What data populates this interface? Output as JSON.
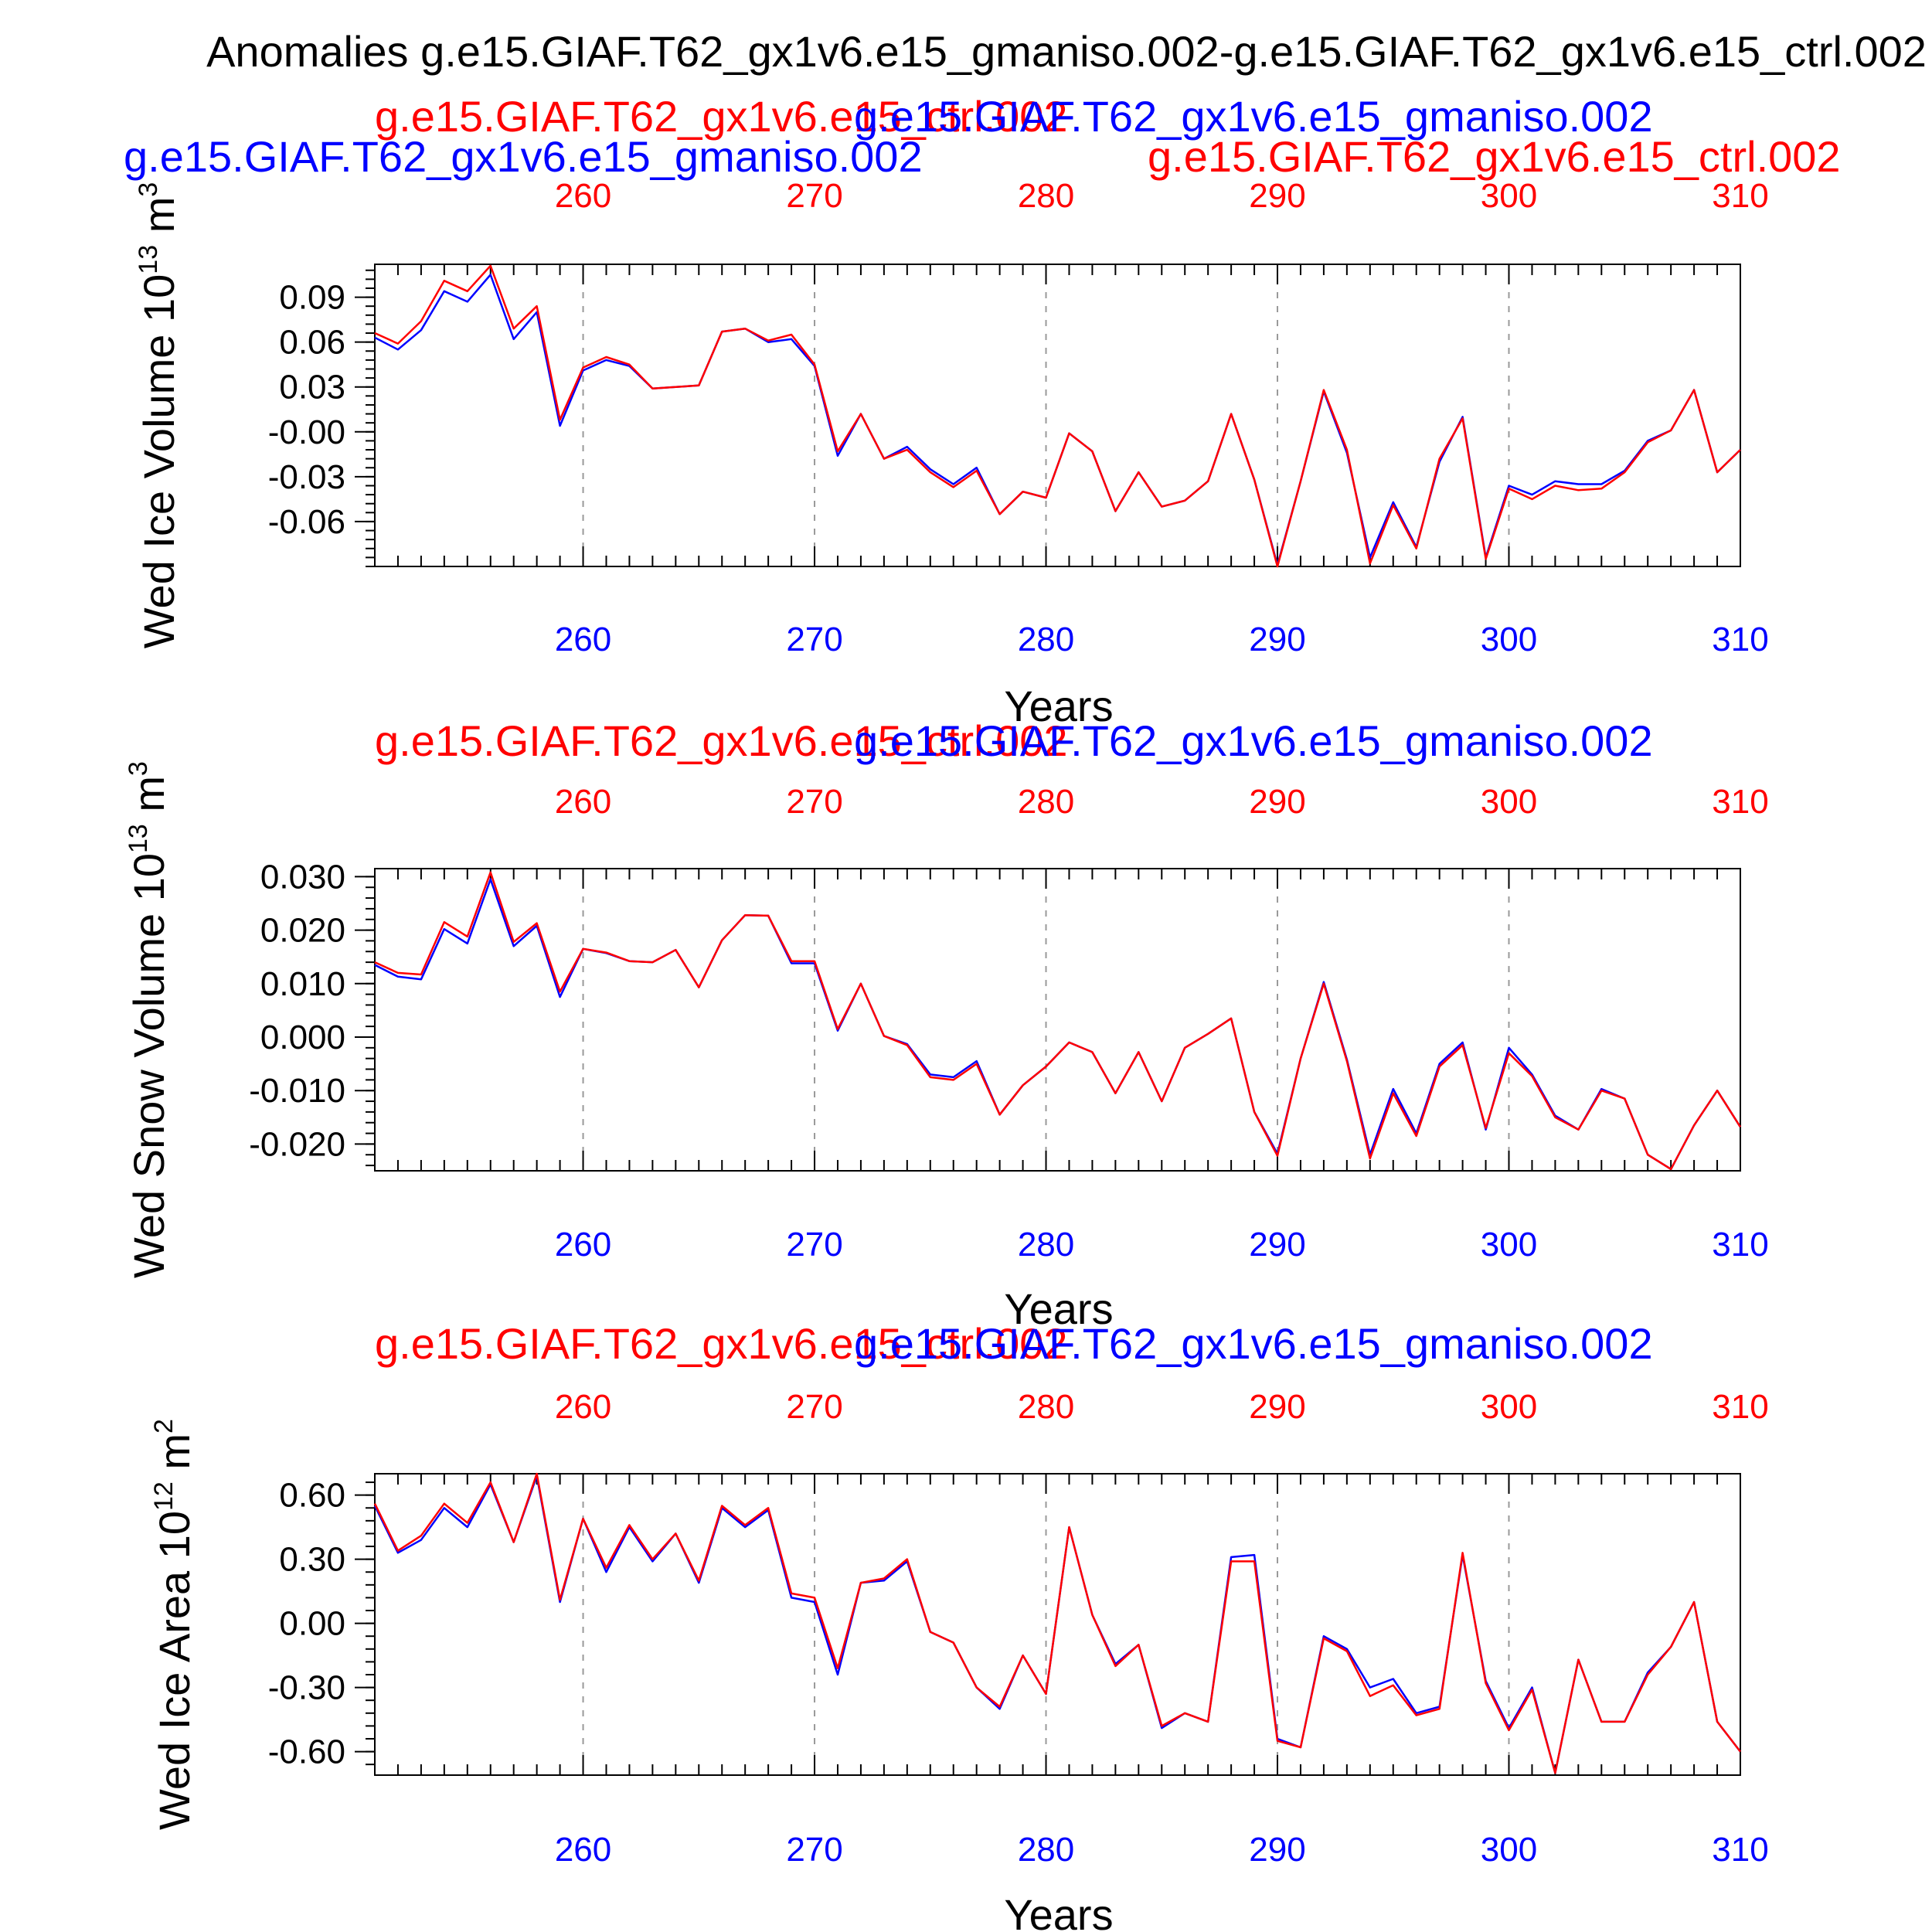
{
  "figure": {
    "title": "Anomalies g.e15.GIAF.T62_gx1v6.e15_gmaniso.002-g.e15.GIAF.T62_gx1v6.e15_ctrl.002",
    "extra_labels": {
      "blue": "g.e15.GIAF.T62_gx1v6.e15_gmaniso.002",
      "red": "g.e15.GIAF.T62_gx1v6.e15_ctrl.002"
    }
  },
  "colors": {
    "ctrl": "#ff0000",
    "gmaniso": "#0000ff",
    "axis": "#000000",
    "grid": "#999999"
  },
  "chart_data": [
    {
      "type": "line",
      "ylabel_main": "Wed Ice Volume 10",
      "ylabel_exp": "13",
      "ylabel_unit": " m",
      "ylabel_unit_exp": "3",
      "xlabel": "Years",
      "top_label_red": "g.e15.GIAF.T62_gx1v6.e15_ctrl.002",
      "top_label_blue": "g.e15.GIAF.T62_gx1v6.e15_gmaniso.002",
      "xlim": [
        251,
        310
      ],
      "ylim": [
        -0.09,
        0.112
      ],
      "xticks": [
        260,
        270,
        280,
        290,
        300,
        310
      ],
      "yticks": [
        0.09,
        0.06,
        0.03,
        -0.0,
        -0.03,
        -0.06
      ],
      "ytick_labels": [
        "0.09",
        "0.06",
        "0.03",
        "-0.00",
        "-0.03",
        "-0.06"
      ],
      "x": [
        251,
        252,
        253,
        254,
        255,
        256,
        257,
        258,
        259,
        260,
        261,
        262,
        263,
        264,
        265,
        266,
        267,
        268,
        269,
        270,
        271,
        272,
        273,
        274,
        275,
        276,
        277,
        278,
        279,
        280,
        281,
        282,
        283,
        284,
        285,
        286,
        287,
        288,
        289,
        290,
        291,
        292,
        293,
        294,
        295,
        296,
        297,
        298,
        299,
        300,
        301,
        302,
        303,
        304,
        305,
        306,
        307,
        308,
        309,
        310
      ],
      "series": [
        {
          "name": "g.e15.GIAF.T62_gx1v6.e15_ctrl.002",
          "color": "#ff0000",
          "values": [
            0.066,
            0.059,
            0.074,
            0.101,
            0.094,
            0.111,
            0.069,
            0.084,
            0.008,
            0.043,
            0.05,
            0.045,
            0.029,
            0.03,
            0.031,
            0.067,
            0.069,
            0.061,
            0.065,
            0.045,
            -0.013,
            0.012,
            -0.018,
            -0.012,
            -0.027,
            -0.037,
            -0.026,
            -0.055,
            -0.04,
            -0.044,
            -0.001,
            -0.013,
            -0.053,
            -0.027,
            -0.05,
            -0.046,
            -0.033,
            0.012,
            -0.032,
            -0.09,
            -0.033,
            0.028,
            -0.012,
            -0.088,
            -0.049,
            -0.078,
            -0.018,
            0.009,
            -0.085,
            -0.038,
            -0.045,
            -0.036,
            -0.039,
            -0.038,
            -0.027,
            -0.007,
            0.001,
            0.028,
            -0.027,
            -0.012
          ]
        },
        {
          "name": "g.e15.GIAF.T62_gx1v6.e15_gmaniso.002",
          "color": "#0000ff",
          "values": [
            0.063,
            0.055,
            0.068,
            0.094,
            0.087,
            0.105,
            0.062,
            0.08,
            0.004,
            0.041,
            0.048,
            0.044,
            0.029,
            0.03,
            0.031,
            0.067,
            0.069,
            0.06,
            0.062,
            0.044,
            -0.016,
            0.012,
            -0.018,
            -0.01,
            -0.025,
            -0.035,
            -0.024,
            -0.055,
            -0.04,
            -0.044,
            -0.001,
            -0.013,
            -0.053,
            -0.027,
            -0.05,
            -0.046,
            -0.033,
            0.012,
            -0.032,
            -0.089,
            -0.033,
            0.027,
            -0.014,
            -0.084,
            -0.047,
            -0.077,
            -0.02,
            0.01,
            -0.084,
            -0.036,
            -0.042,
            -0.033,
            -0.035,
            -0.035,
            -0.026,
            -0.006,
            0.001,
            0.028,
            -0.027,
            -0.012
          ]
        }
      ]
    },
    {
      "type": "line",
      "ylabel_main": "Wed Snow Volume 10",
      "ylabel_exp": "13",
      "ylabel_unit": " m",
      "ylabel_unit_exp": "3",
      "xlabel": "Years",
      "top_label_red": "g.e15.GIAF.T62_gx1v6.e15_ctrl.002",
      "top_label_blue": "g.e15.GIAF.T62_gx1v6.e15_gmaniso.002",
      "xlim": [
        251,
        310
      ],
      "ylim": [
        -0.025,
        0.0315
      ],
      "xticks": [
        260,
        270,
        280,
        290,
        300,
        310
      ],
      "yticks": [
        0.03,
        0.02,
        0.01,
        0.0,
        -0.01,
        -0.02
      ],
      "ytick_labels": [
        "0.030",
        "0.020",
        "0.010",
        "0.000",
        "-0.010",
        "-0.020"
      ],
      "x": [
        251,
        252,
        253,
        254,
        255,
        256,
        257,
        258,
        259,
        260,
        261,
        262,
        263,
        264,
        265,
        266,
        267,
        268,
        269,
        270,
        271,
        272,
        273,
        274,
        275,
        276,
        277,
        278,
        279,
        280,
        281,
        282,
        283,
        284,
        285,
        286,
        287,
        288,
        289,
        290,
        291,
        292,
        293,
        294,
        295,
        296,
        297,
        298,
        299,
        300,
        301,
        302,
        303,
        304,
        305,
        306,
        307,
        308,
        309,
        310
      ],
      "series": [
        {
          "name": "g.e15.GIAF.T62_gx1v6.e15_ctrl.002",
          "color": "#ff0000",
          "values": [
            0.014,
            0.012,
            0.0117,
            0.0215,
            0.0188,
            0.0308,
            0.0178,
            0.0213,
            0.0085,
            0.0165,
            0.0158,
            0.0142,
            0.014,
            0.0163,
            0.0093,
            0.0181,
            0.0228,
            0.0227,
            0.0142,
            0.0142,
            0.0015,
            0.01,
            0.0002,
            -0.0015,
            -0.0075,
            -0.008,
            -0.005,
            -0.0145,
            -0.009,
            -0.0055,
            -0.001,
            -0.0028,
            -0.0105,
            -0.0028,
            -0.012,
            -0.002,
            0.0006,
            0.0035,
            -0.014,
            -0.0222,
            -0.004,
            0.01,
            -0.0045,
            -0.0227,
            -0.0105,
            -0.0185,
            -0.0055,
            -0.0015,
            -0.017,
            -0.003,
            -0.0073,
            -0.015,
            -0.0173,
            -0.01,
            -0.0115,
            -0.022,
            -0.0247,
            -0.0165,
            -0.01,
            -0.0168
          ]
        },
        {
          "name": "g.e15.GIAF.T62_gx1v6.e15_gmaniso.002",
          "color": "#0000ff",
          "values": [
            0.0135,
            0.0113,
            0.0108,
            0.0202,
            0.0175,
            0.0295,
            0.017,
            0.0208,
            0.0075,
            0.0165,
            0.0157,
            0.0142,
            0.014,
            0.0163,
            0.0093,
            0.0181,
            0.0228,
            0.0227,
            0.0138,
            0.0138,
            0.0012,
            0.01,
            0.0002,
            -0.0013,
            -0.007,
            -0.0075,
            -0.0045,
            -0.0145,
            -0.009,
            -0.0055,
            -0.001,
            -0.0028,
            -0.0105,
            -0.0028,
            -0.012,
            -0.002,
            0.0006,
            0.0035,
            -0.014,
            -0.0218,
            -0.004,
            0.0103,
            -0.0042,
            -0.022,
            -0.0097,
            -0.018,
            -0.005,
            -0.001,
            -0.0173,
            -0.002,
            -0.007,
            -0.0147,
            -0.0173,
            -0.0097,
            -0.0115,
            -0.022,
            -0.0247,
            -0.0165,
            -0.01,
            -0.0168
          ]
        }
      ]
    },
    {
      "type": "line",
      "ylabel_main": "Wed Ice Area 10",
      "ylabel_exp": "12",
      "ylabel_unit": " m",
      "ylabel_unit_exp": "2",
      "xlabel": "Years",
      "top_label_red": "g.e15.GIAF.T62_gx1v6.e15_ctrl.002",
      "top_label_blue": "g.e15.GIAF.T62_gx1v6.e15_gmaniso.002",
      "xlim": [
        251,
        310
      ],
      "ylim": [
        -0.71,
        0.7
      ],
      "xticks": [
        260,
        270,
        280,
        290,
        300,
        310
      ],
      "yticks": [
        0.6,
        0.3,
        0.0,
        -0.3,
        -0.6
      ],
      "ytick_labels": [
        "0.60",
        "0.30",
        "0.00",
        "-0.30",
        "-0.60"
      ],
      "x": [
        251,
        252,
        253,
        254,
        255,
        256,
        257,
        258,
        259,
        260,
        261,
        262,
        263,
        264,
        265,
        266,
        267,
        268,
        269,
        270,
        271,
        272,
        273,
        274,
        275,
        276,
        277,
        278,
        279,
        280,
        281,
        282,
        283,
        284,
        285,
        286,
        287,
        288,
        289,
        290,
        291,
        292,
        293,
        294,
        295,
        296,
        297,
        298,
        299,
        300,
        301,
        302,
        303,
        304,
        305,
        306,
        307,
        308,
        309,
        310
      ],
      "series": [
        {
          "name": "g.e15.GIAF.T62_gx1v6.e15_ctrl.002",
          "color": "#ff0000",
          "values": [
            0.56,
            0.34,
            0.41,
            0.56,
            0.47,
            0.66,
            0.38,
            0.7,
            0.11,
            0.49,
            0.26,
            0.46,
            0.3,
            0.42,
            0.2,
            0.55,
            0.46,
            0.54,
            0.14,
            0.12,
            -0.21,
            0.19,
            0.21,
            0.3,
            -0.04,
            -0.09,
            -0.3,
            -0.39,
            -0.15,
            -0.33,
            0.45,
            0.04,
            -0.2,
            -0.1,
            -0.48,
            -0.42,
            -0.46,
            0.29,
            0.29,
            -0.55,
            -0.58,
            -0.07,
            -0.13,
            -0.34,
            -0.29,
            -0.43,
            -0.4,
            0.33,
            -0.28,
            -0.5,
            -0.31,
            -0.7,
            -0.17,
            -0.46,
            -0.46,
            -0.24,
            -0.11,
            0.1,
            -0.46,
            -0.6
          ]
        },
        {
          "name": "g.e15.GIAF.T62_gx1v6.e15_gmaniso.002",
          "color": "#0000ff",
          "values": [
            0.55,
            0.33,
            0.39,
            0.54,
            0.45,
            0.65,
            0.38,
            0.69,
            0.1,
            0.49,
            0.24,
            0.45,
            0.29,
            0.42,
            0.19,
            0.54,
            0.45,
            0.53,
            0.12,
            0.1,
            -0.24,
            0.19,
            0.2,
            0.29,
            -0.04,
            -0.09,
            -0.3,
            -0.4,
            -0.15,
            -0.33,
            0.45,
            0.04,
            -0.19,
            -0.1,
            -0.49,
            -0.42,
            -0.46,
            0.31,
            0.32,
            -0.54,
            -0.58,
            -0.06,
            -0.12,
            -0.3,
            -0.26,
            -0.42,
            -0.39,
            0.32,
            -0.27,
            -0.49,
            -0.3,
            -0.7,
            -0.17,
            -0.46,
            -0.46,
            -0.23,
            -0.11,
            0.1,
            -0.46,
            -0.6
          ]
        }
      ]
    }
  ]
}
